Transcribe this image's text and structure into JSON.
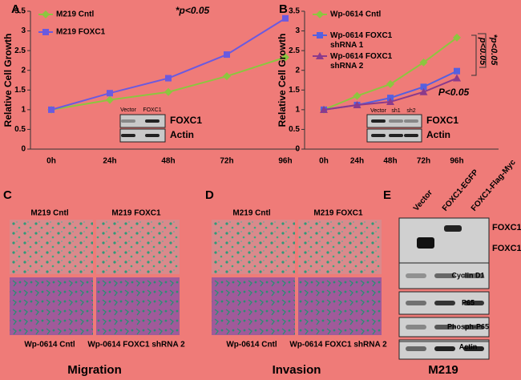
{
  "chart_data": [
    {
      "type": "line",
      "label": "A",
      "ylabel": "Relative Cell Growth",
      "categories": [
        "0h",
        "24h",
        "48h",
        "72h",
        "96h"
      ],
      "ylim": [
        0,
        3.5
      ],
      "yticks": [
        0,
        0.5,
        1,
        1.5,
        2,
        2.5,
        3,
        3.5
      ],
      "series": [
        {
          "name": "M219 Cntl",
          "color": "#8cc63f",
          "marker": "diamond",
          "values": [
            1,
            1.25,
            1.45,
            1.85,
            2.33
          ]
        },
        {
          "name": "M219 FOXC1",
          "color": "#6a5ae0",
          "marker": "square",
          "values": [
            1,
            1.42,
            1.8,
            2.4,
            3.32
          ]
        }
      ],
      "annotations": [
        "*p<0.05"
      ],
      "inset": {
        "lanes": [
          "Vector",
          "FOXC1"
        ],
        "rows": [
          "FOXC1",
          "Actin"
        ]
      }
    },
    {
      "type": "line",
      "label": "B",
      "ylabel": "Relative Cell Growth",
      "categories": [
        "0h",
        "24h",
        "48h",
        "72h",
        "96h"
      ],
      "ylim": [
        0,
        3.5
      ],
      "yticks": [
        0,
        0.5,
        1,
        1.5,
        2,
        2.5,
        3,
        3.5
      ],
      "series": [
        {
          "name": "Wp-0614 Cntl",
          "color": "#8cc63f",
          "marker": "diamond",
          "values": [
            1,
            1.35,
            1.65,
            2.2,
            2.83
          ]
        },
        {
          "name": "Wp-0614 FOXC1 shRNA 1",
          "color": "#5560e0",
          "marker": "square",
          "values": [
            1,
            1.12,
            1.3,
            1.58,
            1.98
          ]
        },
        {
          "name": "Wp-0614 FOXC1 shRNA 2",
          "color": "#8b3a8b",
          "marker": "triangle",
          "values": [
            1,
            1.12,
            1.2,
            1.45,
            1.8
          ]
        }
      ],
      "annotations": [
        "*p<0.05",
        "p<0.05",
        "P<0.05"
      ],
      "inset": {
        "lanes": [
          "Vector",
          "sh1",
          "sh2"
        ],
        "rows": [
          "FOXC1",
          "Actin"
        ]
      }
    }
  ],
  "panels": {
    "C": {
      "label": "C",
      "top": [
        "M219 Cntl",
        "M219 FOXC1"
      ],
      "bottom": [
        "Wp-0614 Cntl",
        "Wp-0614  FOXC1 shRNA 2"
      ],
      "caption": "Migration"
    },
    "D": {
      "label": "D",
      "top": [
        "M219 Cntl",
        "M219 FOXC1"
      ],
      "bottom": [
        "Wp-0614 Cntl",
        "Wp-0614  FOXC1 shRNA  2"
      ],
      "caption": "Invasion"
    },
    "E": {
      "label": "E",
      "lanes": [
        "Vector",
        "FOXC1-EGFP",
        "FOXC1-Flag-Myc"
      ],
      "rows": [
        "FOXC1",
        "FOXC1",
        "Cyclin D1",
        "P65",
        "Phosph-P65",
        "Actin"
      ],
      "caption": "M219"
    }
  }
}
